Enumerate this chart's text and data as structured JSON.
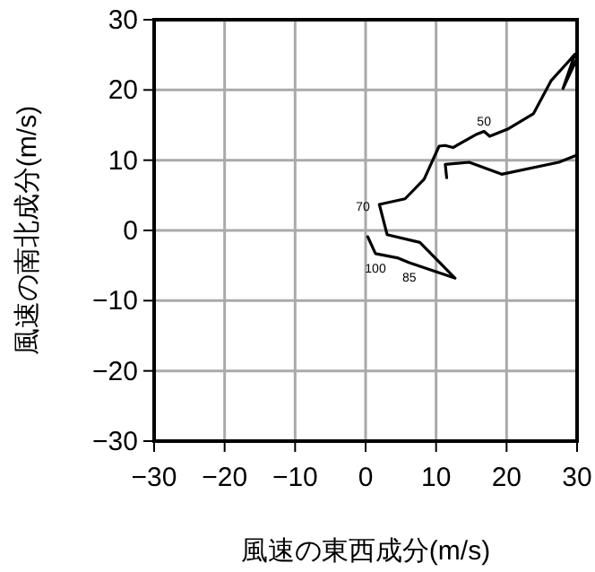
{
  "chart_data": {
    "type": "line",
    "xlabel": "風速の東西成分(m/s)",
    "ylabel": "風速の南北成分(m/s)",
    "series": [
      {
        "color": "#000000",
        "x": [
          0.3,
          1.4,
          4.5,
          6.2,
          12.7,
          7.7,
          3.05,
          1.95,
          5.6,
          8.3,
          10.43,
          11.27,
          12.4,
          15.77,
          16.8,
          17.6,
          20.3,
          23.8,
          26.3,
          28.65,
          29.7,
          28.0,
          30.0,
          null,
          29.9,
          27.4,
          19.3,
          14.7,
          11.3,
          11.5
        ],
        "values": [
          -0.9,
          -3.3,
          -3.9,
          -4.6,
          -6.8,
          -1.7,
          -0.6,
          3.7,
          4.5,
          7.3,
          12.0,
          12.1,
          11.8,
          13.7,
          14.1,
          13.4,
          14.5,
          16.6,
          21.3,
          23.9,
          25.1,
          20.2,
          24.5,
          null,
          10.7,
          9.7,
          8.0,
          9.7,
          9.4,
          7.5
        ]
      }
    ],
    "xlim": [
      -30,
      30
    ],
    "ylim": [
      -30,
      30
    ],
    "xticks": [
      -30,
      -20,
      -10,
      0,
      10,
      20,
      30
    ],
    "yticks": [
      -30,
      -20,
      -10,
      0,
      10,
      20,
      30
    ],
    "grid": true,
    "annotations": [
      {
        "text": "50",
        "x": 16.8,
        "y": 14.1
      },
      {
        "text": "70",
        "x": 1.95,
        "y": 3.7
      },
      {
        "text": "100",
        "x": 1.4,
        "y": -3.3
      },
      {
        "text": "85",
        "x": 6.2,
        "y": -4.6
      }
    ]
  }
}
